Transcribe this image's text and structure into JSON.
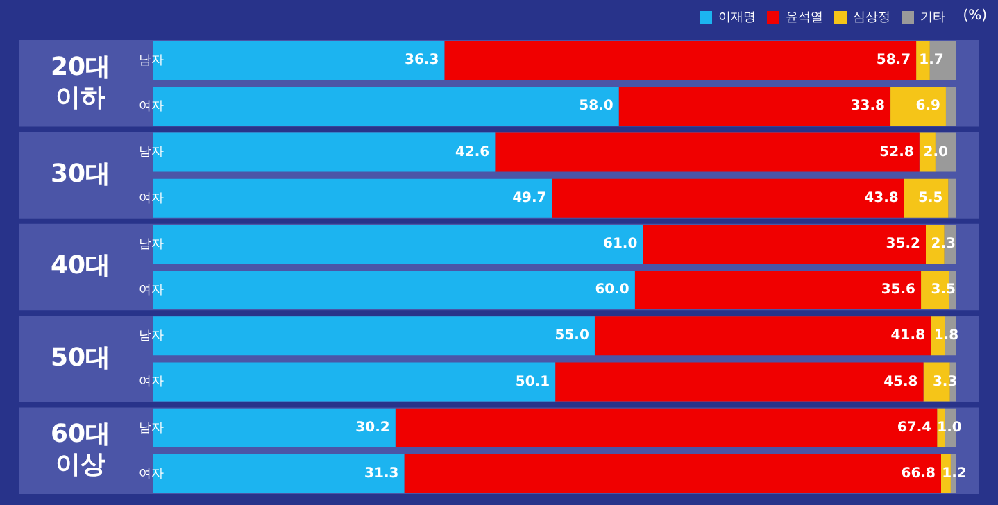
{
  "chart_data": {
    "type": "bar",
    "orientation": "horizontal",
    "stacked": true,
    "categories": [
      "남자",
      "여자",
      "남자",
      "여자",
      "남자",
      "여자",
      "남자",
      "여자",
      "남자",
      "여자"
    ],
    "annotations": [
      "20대 이하",
      "30대",
      "40대",
      "50대",
      "60대 이상"
    ],
    "legend_title": "(%)",
    "legend": "top right",
    "tick_labels": "y",
    "grid": false,
    "xlim": [
      0,
      100
    ],
    "series": [
      {
        "name": "이재명",
        "color": "#1cb4f0",
        "values": [
          36.3,
          58.0,
          42.6,
          49.7,
          61.0,
          60.0,
          55.0,
          50.1,
          30.2,
          31.3
        ],
        "value_labels": [
          "36.3",
          "58.0",
          "42.6",
          "49.7",
          "61.0",
          "60.0",
          "55.0",
          "50.1",
          "30.2",
          "31.3"
        ]
      },
      {
        "name": "윤석열",
        "color": "#f00000",
        "values": [
          58.7,
          33.8,
          52.8,
          43.8,
          35.2,
          35.6,
          41.8,
          45.8,
          67.4,
          66.8
        ],
        "value_labels": [
          "58.7",
          "33.8",
          "52.8",
          "43.8",
          "35.2",
          "35.6",
          "41.8",
          "45.8",
          "67.4",
          "66.8"
        ]
      },
      {
        "name": "심상정",
        "color": "#f5c518",
        "values": [
          1.7,
          6.9,
          2.0,
          5.5,
          2.3,
          3.5,
          1.8,
          3.3,
          1.0,
          1.2
        ],
        "value_labels": [
          "1.7",
          "6.9",
          "2.0",
          "5.5",
          "2.3",
          "3.5",
          "1.8",
          "3.3",
          "1.0",
          "1.2"
        ]
      },
      {
        "name": "기타",
        "color": "#9a9a9a",
        "values": [
          3.3,
          1.3,
          2.6,
          1.0,
          1.5,
          0.9,
          1.4,
          0.8,
          1.4,
          0.7
        ]
      }
    ]
  }
}
